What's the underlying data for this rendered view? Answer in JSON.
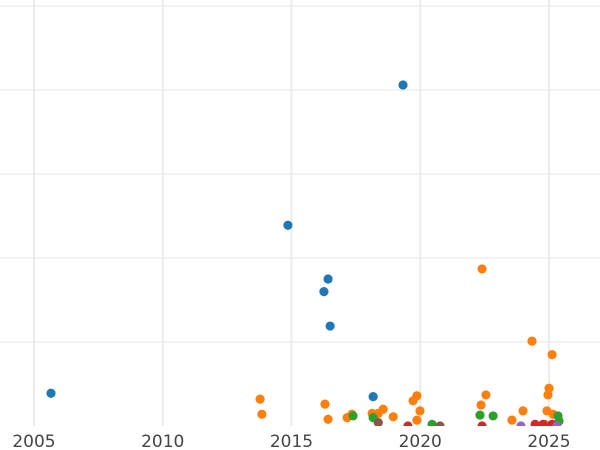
{
  "chart_data": {
    "type": "scatter",
    "title": "",
    "xlabel": "",
    "ylabel": "",
    "xlim": [
      2003.7,
      2027.1
    ],
    "ylim": [
      0,
      5.07
    ],
    "x_ticks": [
      "2005",
      "2010",
      "2015",
      "2020",
      "2025"
    ],
    "x_tick_values": [
      2005,
      2010,
      2015,
      2020,
      2025
    ],
    "y_gridlines": [
      1,
      2,
      3,
      4,
      5
    ],
    "grid": true,
    "legend": "none",
    "series": [
      {
        "name": "blue",
        "color": "#1f77b4",
        "points": [
          [
            2005.66,
            0.39
          ],
          [
            2014.86,
            2.39
          ],
          [
            2019.33,
            4.06
          ],
          [
            2016.42,
            1.75
          ],
          [
            2016.26,
            1.6
          ],
          [
            2016.5,
            1.19
          ],
          [
            2018.17,
            0.35
          ]
        ]
      },
      {
        "name": "orange",
        "color": "#ff7f0e",
        "points": [
          [
            2013.78,
            0.32
          ],
          [
            2013.85,
            0.14
          ],
          [
            2016.3,
            0.26
          ],
          [
            2016.42,
            0.08
          ],
          [
            2017.16,
            0.1
          ],
          [
            2017.35,
            0.14
          ],
          [
            2018.13,
            0.15
          ],
          [
            2018.37,
            0.15
          ],
          [
            2018.56,
            0.2
          ],
          [
            2018.95,
            0.11
          ],
          [
            2019.72,
            0.3
          ],
          [
            2019.87,
            0.36
          ],
          [
            2019.99,
            0.18
          ],
          [
            2019.87,
            0.07
          ],
          [
            2022.4,
            1.87
          ],
          [
            2022.36,
            0.25
          ],
          [
            2022.55,
            0.37
          ],
          [
            2023.56,
            0.07
          ],
          [
            2023.99,
            0.18
          ],
          [
            2024.34,
            1.01
          ],
          [
            2025.12,
            0.85
          ],
          [
            2025.0,
            0.45
          ],
          [
            2024.96,
            0.37
          ],
          [
            2024.92,
            0.18
          ],
          [
            2024.84,
            0.02
          ],
          [
            2025.16,
            0.14
          ]
        ]
      },
      {
        "name": "green",
        "color": "#2ca02c",
        "points": [
          [
            2017.39,
            0.12
          ],
          [
            2018.17,
            0.1
          ],
          [
            2020.46,
            0.02
          ],
          [
            2022.32,
            0.13
          ],
          [
            2022.83,
            0.12
          ],
          [
            2025.35,
            0.12
          ],
          [
            2025.39,
            0.06
          ]
        ]
      },
      {
        "name": "red",
        "color": "#d62728",
        "points": [
          [
            2019.52,
            0.0
          ],
          [
            2022.4,
            0.0
          ],
          [
            2024.46,
            0.02
          ],
          [
            2024.77,
            0.02
          ],
          [
            2025.12,
            0.02
          ]
        ]
      },
      {
        "name": "brown",
        "color": "#8c564b",
        "points": [
          [
            2018.37,
            0.04
          ],
          [
            2020.77,
            0.0
          ]
        ]
      },
      {
        "name": "purple",
        "color": "#9467bd",
        "points": [
          [
            2023.91,
            0.0
          ],
          [
            2025.31,
            0.0
          ]
        ]
      }
    ]
  }
}
